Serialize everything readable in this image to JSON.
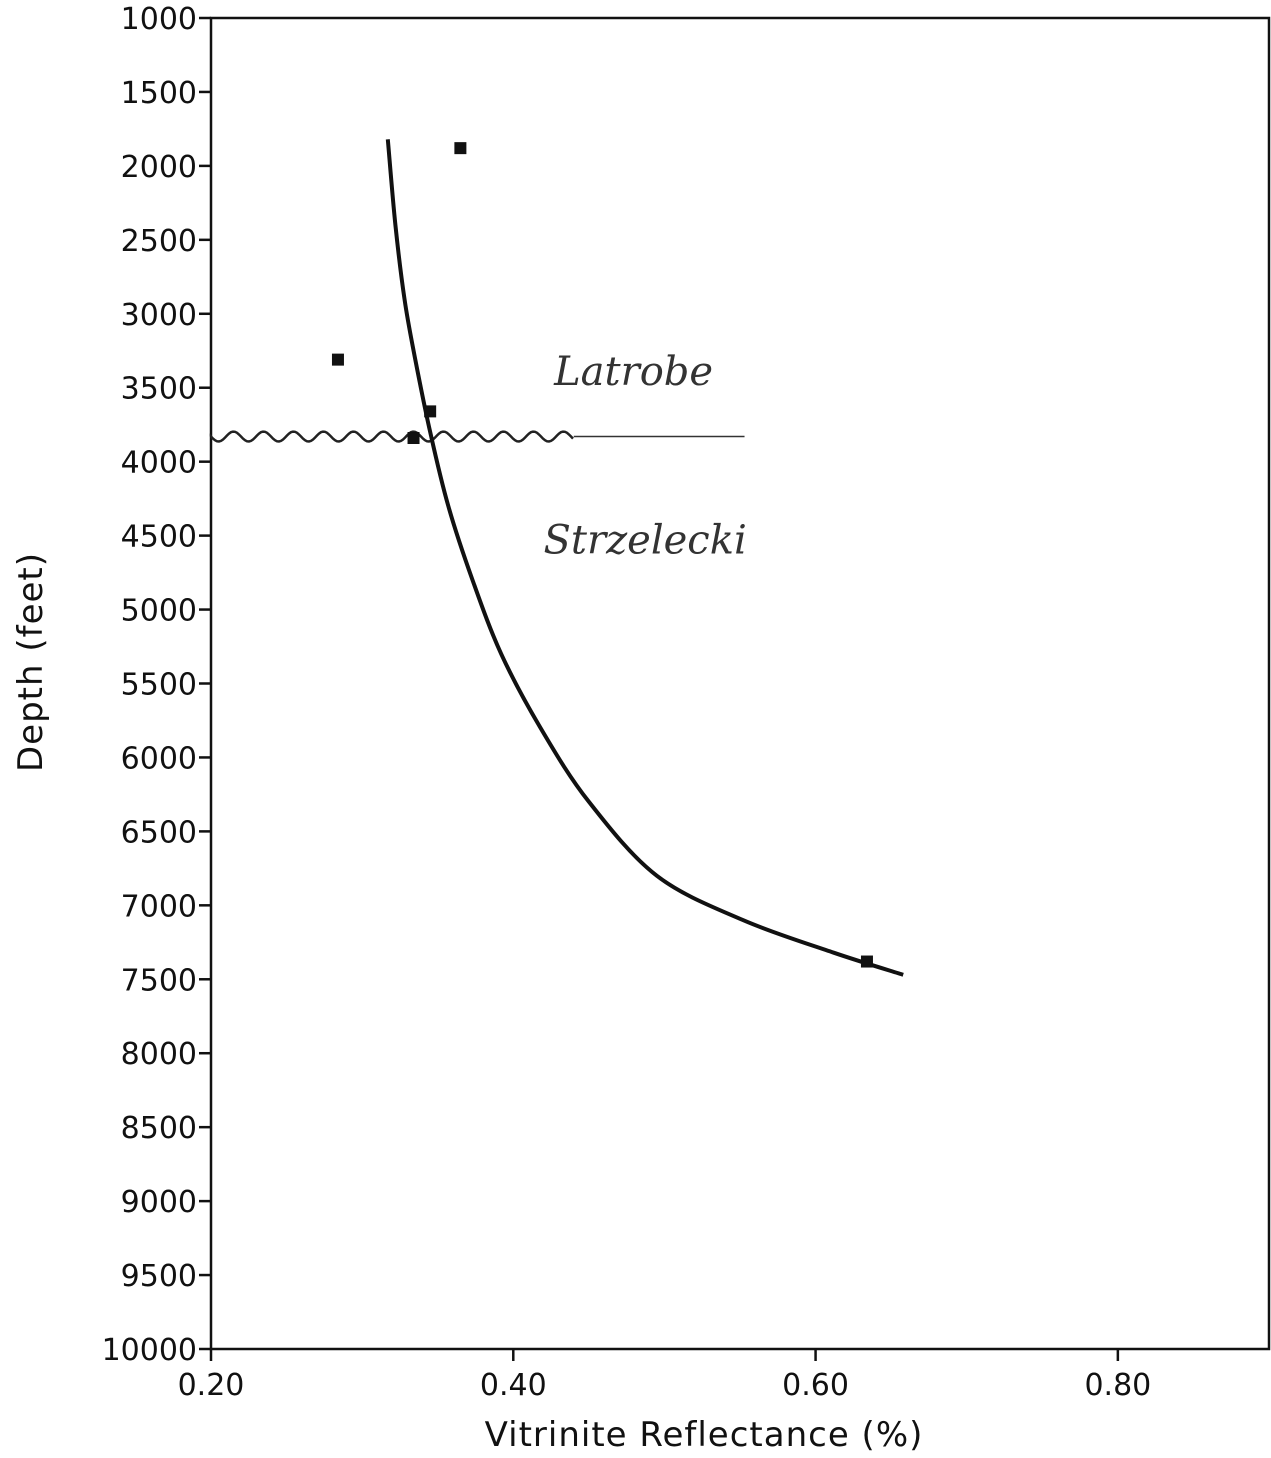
{
  "chart_data": {
    "type": "scatter",
    "title": "",
    "xlabel": "Vitrinite Reflectance (%)",
    "ylabel": "Depth (feet)",
    "xlim": [
      0.2,
      0.9
    ],
    "ylim": [
      1000,
      10000
    ],
    "y_inverted": true,
    "x_ticks": [
      "0.20",
      "0.40",
      "0.60",
      "0.80"
    ],
    "x_tick_values": [
      0.2,
      0.4,
      0.6,
      0.8
    ],
    "y_ticks": [
      "1000",
      "1500",
      "2000",
      "2500",
      "3000",
      "3500",
      "4000",
      "4500",
      "5000",
      "5500",
      "6000",
      "6500",
      "7000",
      "7500",
      "8000",
      "8500",
      "9000",
      "9500",
      "10000"
    ],
    "y_tick_values": [
      1000,
      1500,
      2000,
      2500,
      3000,
      3500,
      4000,
      4500,
      5000,
      5500,
      6000,
      6500,
      7000,
      7500,
      8000,
      8500,
      9000,
      9500,
      10000
    ],
    "grid": false,
    "points": [
      {
        "x": 0.365,
        "y": 1880
      },
      {
        "x": 0.284,
        "y": 3310
      },
      {
        "x": 0.345,
        "y": 3660
      },
      {
        "x": 0.334,
        "y": 3840
      },
      {
        "x": 0.634,
        "y": 7380
      }
    ],
    "trend_curve": [
      {
        "x": 0.317,
        "y": 1820
      },
      {
        "x": 0.322,
        "y": 2400
      },
      {
        "x": 0.328,
        "y": 2900
      },
      {
        "x": 0.335,
        "y": 3300
      },
      {
        "x": 0.345,
        "y": 3800
      },
      {
        "x": 0.357,
        "y": 4300
      },
      {
        "x": 0.373,
        "y": 4800
      },
      {
        "x": 0.392,
        "y": 5300
      },
      {
        "x": 0.418,
        "y": 5800
      },
      {
        "x": 0.45,
        "y": 6300
      },
      {
        "x": 0.495,
        "y": 6800
      },
      {
        "x": 0.552,
        "y": 7100
      },
      {
        "x": 0.612,
        "y": 7320
      },
      {
        "x": 0.658,
        "y": 7470
      }
    ],
    "formation_contact": {
      "depth": 3830,
      "x_start": 0.2,
      "wavy_end": 0.44,
      "x_end": 0.553
    },
    "annotations": [
      {
        "text": "Latrobe",
        "x": 0.427,
        "y": 3480
      },
      {
        "text": "Strzelecki",
        "x": 0.42,
        "y": 4620
      }
    ]
  }
}
